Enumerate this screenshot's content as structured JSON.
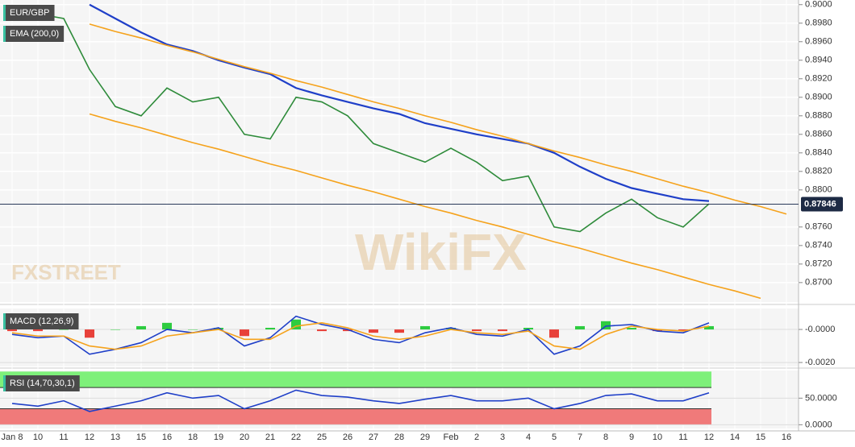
{
  "chart_data": [
    {
      "type": "line",
      "categories": [
        "Jan 8",
        "10",
        "11",
        "12",
        "13",
        "15",
        "16",
        "18",
        "19",
        "20",
        "21",
        "22",
        "25",
        "26",
        "27",
        "28",
        "29",
        "Feb",
        "2",
        "3",
        "4",
        "5",
        "7",
        "8",
        "9",
        "10",
        "11",
        "12",
        "14",
        "15",
        "16"
      ],
      "ylim": [
        0.8679,
        0.9005
      ],
      "yticks": [
        {
          "value": 0.9,
          "label": "0.9000"
        },
        {
          "value": 0.898,
          "label": "0.8980"
        },
        {
          "value": 0.896,
          "label": "0.8960"
        },
        {
          "value": 0.894,
          "label": "0.8940"
        },
        {
          "value": 0.892,
          "label": "0.8920"
        },
        {
          "value": 0.89,
          "label": "0.8900"
        },
        {
          "value": 0.888,
          "label": "0.8880"
        },
        {
          "value": 0.886,
          "label": "0.8860"
        },
        {
          "value": 0.884,
          "label": "0.8840"
        },
        {
          "value": 0.882,
          "label": "0.8820"
        },
        {
          "value": 0.88,
          "label": "0.8800"
        },
        {
          "value": 0.876,
          "label": "0.8760"
        },
        {
          "value": 0.874,
          "label": "0.8740"
        },
        {
          "value": 0.872,
          "label": "0.8720"
        },
        {
          "value": 0.87,
          "label": "0.8700"
        }
      ],
      "grid": true,
      "current_price": {
        "value": 0.87846,
        "label": "0.87846"
      },
      "watermarks": [
        "FXSTREET",
        "WikiFX"
      ],
      "series": [
        {
          "name": "EUR/GBP",
          "color": "#2e8b3a",
          "values": [
            0.8995,
            0.899,
            0.8985,
            0.893,
            0.889,
            0.888,
            0.891,
            0.8895,
            0.89,
            0.886,
            0.8855,
            0.89,
            0.8895,
            0.888,
            0.885,
            0.884,
            0.883,
            0.8845,
            0.883,
            0.881,
            0.8815,
            0.876,
            0.8755,
            0.8775,
            0.879,
            0.877,
            0.876,
            0.8785,
            null,
            null,
            null
          ]
        },
        {
          "name": "EMA (200,0)",
          "color": "#1f3fc8",
          "values": [
            null,
            null,
            null,
            0.9,
            0.8985,
            0.897,
            0.8957,
            0.895,
            0.894,
            0.8932,
            0.8925,
            0.891,
            0.8902,
            0.8895,
            0.8888,
            0.8882,
            0.8872,
            0.8866,
            0.886,
            0.8855,
            0.885,
            0.884,
            0.8825,
            0.8812,
            0.8802,
            0.8796,
            0.879,
            0.8788,
            null,
            null,
            null
          ]
        },
        {
          "color": "#f5a21b",
          "values": [
            null,
            null,
            null,
            0.8979,
            0.8971,
            0.8964,
            0.8956,
            0.8949,
            0.8941,
            0.8933,
            0.8926,
            0.8918,
            0.8911,
            0.8903,
            0.8895,
            0.8888,
            0.888,
            0.8873,
            0.8865,
            0.8858,
            0.885,
            0.8842,
            0.8835,
            0.8827,
            0.882,
            0.8812,
            0.8804,
            0.8797,
            0.8789,
            0.8782,
            0.8774
          ]
        },
        {
          "color": "#f5a21b",
          "values": [
            null,
            null,
            null,
            0.8882,
            0.8874,
            0.8867,
            0.8859,
            0.8851,
            0.8844,
            0.8836,
            0.8828,
            0.8821,
            0.8813,
            0.8805,
            0.8798,
            0.879,
            0.8782,
            0.8775,
            0.8767,
            0.876,
            0.8752,
            0.8744,
            0.8737,
            0.8729,
            0.8721,
            0.8714,
            0.8706,
            0.8698,
            0.8691,
            0.8683,
            null
          ]
        }
      ]
    },
    {
      "type": "line",
      "title": "MACD (12,26,9)",
      "ylim": [
        -0.00224,
        0.00127
      ],
      "yticks": [
        {
          "value": 0,
          "label": "-0.0000"
        },
        {
          "value": -0.002,
          "label": "-0.0020"
        }
      ],
      "series": [
        {
          "style": "bar",
          "color": "#2ecc40",
          "negative_color": "#e8413a",
          "values": [
            -0.0001,
            -0.0001,
            0,
            -0.0005,
            0,
            0.0002,
            0.0004,
            0,
            0.0001,
            -0.0004,
            0.0001,
            0.0006,
            -0.0001,
            -0.0001,
            -0.0002,
            -0.0002,
            0.0002,
            0.0001,
            -0.0001,
            -0.0001,
            0.0001,
            -0.0005,
            0.0002,
            0.0005,
            0.0001,
            -0.0001,
            -0.0001,
            0.0002
          ]
        },
        {
          "color": "#1f3fc8",
          "values": [
            -0.0003,
            -0.0005,
            -0.0004,
            -0.0015,
            -0.0012,
            -0.0008,
            0,
            -0.0002,
            0.0001,
            -0.001,
            -0.0005,
            0.0008,
            0.0003,
            0,
            -0.0006,
            -0.0008,
            -0.0002,
            0.0001,
            -0.0003,
            -0.0004,
            0,
            -0.0015,
            -0.001,
            0.0002,
            0.0003,
            -0.0001,
            -0.0002,
            0.0004
          ]
        },
        {
          "color": "#f5a21b",
          "values": [
            -0.0002,
            -0.0004,
            -0.0004,
            -0.001,
            -0.0012,
            -0.001,
            -0.0004,
            -0.0002,
            0,
            -0.0006,
            -0.0006,
            0.0002,
            0.0004,
            0.0001,
            -0.0004,
            -0.0006,
            -0.0004,
            0,
            -0.0002,
            -0.0003,
            -0.0001,
            -0.001,
            -0.0012,
            -0.0003,
            0.0002,
            0,
            -0.0001,
            0.0002
          ]
        }
      ]
    },
    {
      "type": "line",
      "title": "RSI (14,70,30,1)",
      "ylim": [
        -7,
        102
      ],
      "overbought": 70,
      "oversold": 30,
      "yticks": [
        {
          "value": 50,
          "label": "50.0000"
        },
        {
          "value": 0,
          "label": "0.0000"
        }
      ],
      "series": [
        {
          "color": "#1f3fc8",
          "values": [
            40,
            35,
            45,
            25,
            35,
            45,
            60,
            50,
            55,
            30,
            45,
            65,
            55,
            52,
            45,
            40,
            48,
            55,
            45,
            45,
            50,
            30,
            40,
            55,
            58,
            45,
            45,
            60
          ]
        }
      ]
    }
  ]
}
